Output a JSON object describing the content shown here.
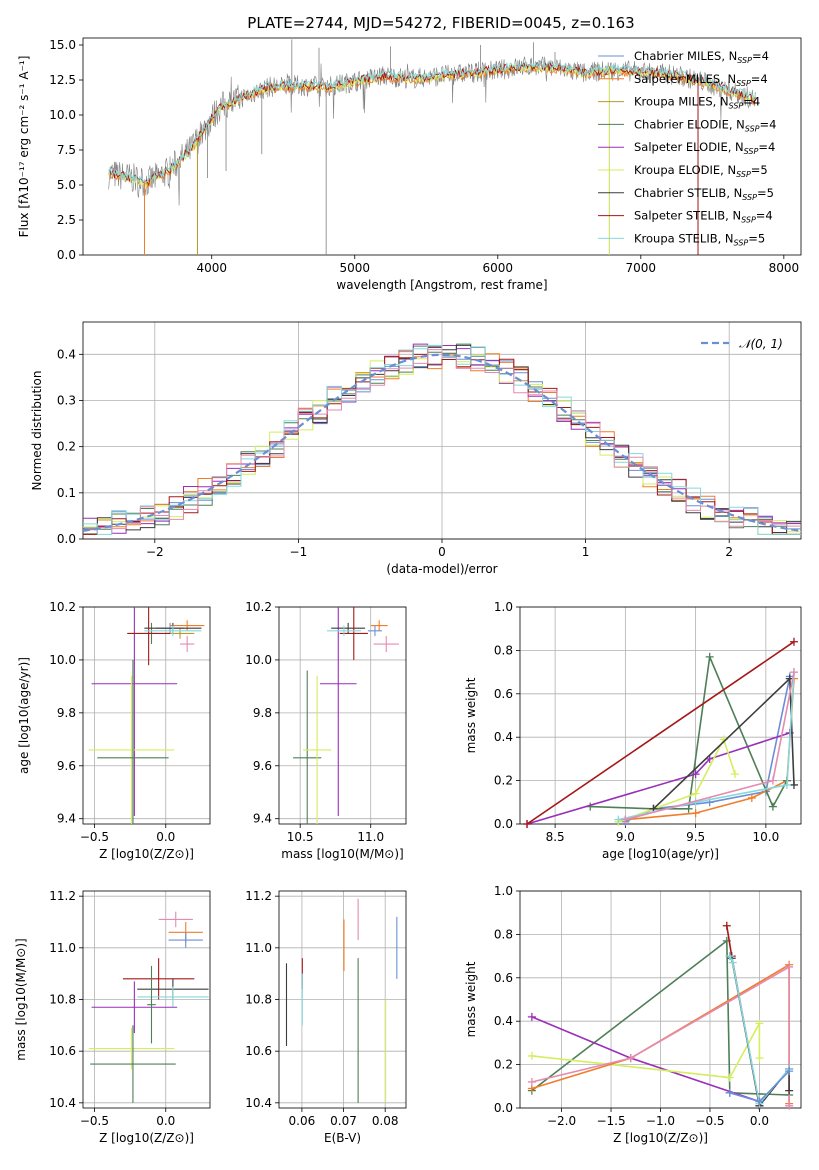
{
  "title": "PLATE=2744, MJD=54272, FIBERID=0045, z=0.163",
  "colors": {
    "chabrier_miles": "#6b8fd6",
    "salpeter_miles": "#f07d2a",
    "kroupa_miles": "#b79a2c",
    "chabrier_elodie": "#4f7f57",
    "salpeter_elodie": "#9a2fb8",
    "kroupa_elodie": "#d4ee5f",
    "chabrier_stelib": "#3d3d3d",
    "salpeter_stelib": "#a51818",
    "kroupa_stelib": "#86d8dc",
    "pink": "#e58ab0",
    "grey": "#808080",
    "normal_curve": "#6b8fd6"
  },
  "chart_data": [
    {
      "type": "line",
      "id": "spectrum",
      "xlabel": "wavelength [Angstrom, rest frame]",
      "ylabel": "Flux [f_λ10^-17 erg cm^-2 s^-1 A^-1]",
      "xlim": [
        3100,
        8120
      ],
      "ylim": [
        0,
        15.5
      ],
      "xticks": [
        4000,
        5000,
        6000,
        7000,
        8000
      ],
      "yticks": [
        0.0,
        2.5,
        5.0,
        7.5,
        10.0,
        12.5,
        15.0
      ],
      "grid": false,
      "legend_position": "right",
      "legend": [
        {
          "label": "Chabrier MILES, N_SSP=4",
          "color_key": "chabrier_miles"
        },
        {
          "label": "Salpeter MILES, N_SSP=4",
          "color_key": "salpeter_miles"
        },
        {
          "label": "Kroupa MILES, N_SSP=4",
          "color_key": "kroupa_miles"
        },
        {
          "label": "Chabrier ELODIE, N_SSP=4",
          "color_key": "chabrier_elodie"
        },
        {
          "label": "Salpeter ELODIE, N_SSP=4",
          "color_key": "salpeter_elodie"
        },
        {
          "label": "Kroupa ELODIE, N_SSP=5",
          "color_key": "kroupa_elodie"
        },
        {
          "label": "Chabrier STELIB, N_SSP=5",
          "color_key": "chabrier_stelib"
        },
        {
          "label": "Salpeter STELIB, N_SSP=4",
          "color_key": "salpeter_stelib"
        },
        {
          "label": "Kroupa STELIB, N_SSP=5",
          "color_key": "kroupa_stelib"
        }
      ],
      "continuum": [
        [
          3280,
          5.8
        ],
        [
          3400,
          5.6
        ],
        [
          3550,
          5.2
        ],
        [
          3700,
          6.0
        ],
        [
          3850,
          7.5
        ],
        [
          3950,
          9.0
        ],
        [
          4050,
          10.5
        ],
        [
          4200,
          11.2
        ],
        [
          4400,
          12.0
        ],
        [
          4600,
          12.1
        ],
        [
          4800,
          12.0
        ],
        [
          5000,
          12.4
        ],
        [
          5200,
          12.8
        ],
        [
          5400,
          12.6
        ],
        [
          5600,
          12.8
        ],
        [
          5800,
          13.0
        ],
        [
          6000,
          13.2
        ],
        [
          6200,
          13.5
        ],
        [
          6400,
          13.4
        ],
        [
          6600,
          13.0
        ],
        [
          6800,
          13.2
        ],
        [
          7000,
          13.1
        ],
        [
          7200,
          12.9
        ],
        [
          7400,
          12.5
        ],
        [
          7600,
          11.8
        ],
        [
          7800,
          11.1
        ]
      ],
      "spikes_down": [
        [
          3530,
          0.0
        ],
        [
          3900,
          0.0
        ],
        [
          4800,
          0.0
        ],
        [
          6780,
          0.0
        ],
        [
          7400,
          0.0
        ],
        [
          4350,
          7.2
        ],
        [
          4100,
          6.0
        ],
        [
          3970,
          5.5
        ]
      ],
      "spikes_up": [
        [
          4560,
          15.4
        ],
        [
          4750,
          14.8
        ],
        [
          5250,
          14.9
        ],
        [
          5880,
          15.0
        ],
        [
          6250,
          15.2
        ],
        [
          6400,
          14.5
        ]
      ]
    },
    {
      "type": "histogram",
      "id": "residuals",
      "xlabel": "(data-model)/error",
      "ylabel": "Normed distribution",
      "xlim": [
        -2.5,
        2.5
      ],
      "ylim": [
        0,
        0.47
      ],
      "xticks": [
        -2,
        -1,
        0,
        1,
        2
      ],
      "yticks": [
        0.0,
        0.1,
        0.2,
        0.3,
        0.4
      ],
      "grid": true,
      "legend_position": "top-right",
      "legend": [
        {
          "label": "𝒩(0, 1)",
          "color_key": "normal_curve"
        }
      ],
      "bin_width": 0.1
    },
    {
      "type": "errorbar",
      "id": "age_vs_Z",
      "xlabel": "Z [log10(Z/Z⊙)]",
      "ylabel": "age [log10(age/yr)]",
      "xlim": [
        -0.58,
        0.31
      ],
      "ylim": [
        9.38,
        10.2
      ],
      "xticks": [
        -0.5,
        0.0
      ],
      "yticks": [
        9.4,
        9.6,
        9.8,
        10.0,
        10.2
      ],
      "grid": true,
      "points": [
        {
          "color_key": "chabrier_miles",
          "x": 0.03,
          "xerr": 0.1,
          "y": 10.12,
          "yerr": 0.02
        },
        {
          "color_key": "salpeter_miles",
          "x": 0.15,
          "xerr": 0.12,
          "y": 10.13,
          "yerr": 0.02
        },
        {
          "color_key": "kroupa_miles",
          "x": 0.1,
          "xerr": 0.1,
          "y": 10.1,
          "yerr": 0.02
        },
        {
          "color_key": "chabrier_elodie",
          "x": -0.1,
          "xerr": 0.05,
          "y": 10.1,
          "yerr": 0.04
        },
        {
          "color_key": "salpeter_elodie",
          "x": -0.22,
          "xerr": 0.3,
          "y": 9.91,
          "yerr": 0.5
        },
        {
          "color_key": "kroupa_elodie",
          "x": -0.24,
          "xerr": 0.3,
          "y": 9.66,
          "yerr": 0.28
        },
        {
          "color_key": "chabrier_stelib",
          "x": 0.05,
          "xerr": 0.2,
          "y": 10.12,
          "yerr": 0.02
        },
        {
          "color_key": "salpeter_stelib",
          "x": -0.12,
          "xerr": 0.15,
          "y": 10.1,
          "yerr": 0.12
        },
        {
          "color_key": "kroupa_stelib",
          "x": 0.05,
          "xerr": 0.2,
          "y": 10.11,
          "yerr": 0.02
        },
        {
          "color_key": "chabrier_elodie",
          "x": -0.23,
          "xerr": 0.25,
          "y": 9.63,
          "yerr": 0.37
        },
        {
          "color_key": "pink",
          "x": 0.15,
          "xerr": 0.05,
          "y": 10.06,
          "yerr": 0.03
        }
      ]
    },
    {
      "type": "errorbar",
      "id": "age_vs_mass",
      "xlabel": "mass [log10(M/M⊙)]",
      "ylabel": "",
      "xlim": [
        10.35,
        11.25
      ],
      "ylim": [
        9.38,
        10.2
      ],
      "xticks": [
        10.5,
        11.0
      ],
      "yticks": [
        9.4,
        9.6,
        9.8,
        10.0,
        10.2
      ],
      "grid": true,
      "points": [
        {
          "color_key": "chabrier_miles",
          "x": 11.03,
          "xerr": 0.05,
          "y": 10.11,
          "yerr": 0.02
        },
        {
          "color_key": "salpeter_miles",
          "x": 11.06,
          "xerr": 0.06,
          "y": 10.13,
          "yerr": 0.02
        },
        {
          "color_key": "pink",
          "x": 11.11,
          "xerr": 0.09,
          "y": 10.06,
          "yerr": 0.03
        },
        {
          "color_key": "chabrier_elodie",
          "x": 10.55,
          "xerr": 0.1,
          "y": 9.63,
          "yerr": 0.33
        },
        {
          "color_key": "salpeter_elodie",
          "x": 10.77,
          "xerr": 0.13,
          "y": 9.91,
          "yerr": 0.5
        },
        {
          "color_key": "kroupa_elodie",
          "x": 10.62,
          "xerr": 0.1,
          "y": 9.66,
          "yerr": 0.28
        },
        {
          "color_key": "chabrier_stelib",
          "x": 10.84,
          "xerr": 0.12,
          "y": 10.12,
          "yerr": 0.02
        },
        {
          "color_key": "salpeter_stelib",
          "x": 10.88,
          "xerr": 0.1,
          "y": 10.1,
          "yerr": 0.1
        },
        {
          "color_key": "kroupa_stelib",
          "x": 10.81,
          "xerr": 0.12,
          "y": 10.11,
          "yerr": 0.02
        }
      ]
    },
    {
      "type": "line",
      "id": "mass_weight_vs_age",
      "xlabel": "age [log10(age/yr)]",
      "ylabel": "mass weight",
      "xlim": [
        8.25,
        10.25
      ],
      "ylim": [
        0,
        1.0
      ],
      "xticks": [
        8.5,
        9.0,
        9.5,
        10.0
      ],
      "yticks": [
        0.0,
        0.2,
        0.4,
        0.6,
        0.8,
        1.0
      ],
      "grid": true,
      "series": [
        {
          "color_key": "chabrier_miles",
          "x": [
            9.0,
            9.2,
            9.6,
            10.0,
            10.17
          ],
          "y": [
            0.01,
            0.07,
            0.1,
            0.15,
            0.68
          ]
        },
        {
          "color_key": "salpeter_miles",
          "x": [
            9.0,
            9.5,
            9.9,
            10.15,
            10.2
          ],
          "y": [
            0.02,
            0.05,
            0.12,
            0.2,
            0.67
          ]
        },
        {
          "color_key": "chabrier_elodie",
          "x": [
            8.75,
            9.2,
            9.45,
            9.6,
            10.05,
            10.15
          ],
          "y": [
            0.08,
            0.07,
            0.07,
            0.77,
            0.08,
            0.2
          ]
        },
        {
          "color_key": "salpeter_elodie",
          "x": [
            8.3,
            9.5,
            9.6,
            10.17
          ],
          "y": [
            0.0,
            0.23,
            0.3,
            0.42
          ]
        },
        {
          "color_key": "kroupa_elodie",
          "x": [
            8.95,
            9.5,
            9.7,
            9.78
          ],
          "y": [
            0.01,
            0.14,
            0.39,
            0.23
          ]
        },
        {
          "color_key": "chabrier_stelib",
          "x": [
            9.2,
            10.17,
            10.2
          ],
          "y": [
            0.07,
            0.67,
            0.18
          ]
        },
        {
          "color_key": "salpeter_stelib",
          "x": [
            8.3,
            10.2
          ],
          "y": [
            0.0,
            0.84
          ]
        },
        {
          "color_key": "kroupa_stelib",
          "x": [
            8.95,
            9.5,
            10.15,
            10.2
          ],
          "y": [
            0.02,
            0.1,
            0.18,
            0.7
          ]
        },
        {
          "color_key": "pink",
          "x": [
            9.0,
            10.05,
            10.2
          ],
          "y": [
            0.02,
            0.2,
            0.7
          ]
        }
      ]
    },
    {
      "type": "errorbar",
      "id": "mass_vs_Z",
      "xlabel": "Z [log10(Z/Z⊙)]",
      "ylabel": "mass [log10(M/M⊙)]",
      "xlim": [
        -0.58,
        0.31
      ],
      "ylim": [
        10.38,
        11.22
      ],
      "xticks": [
        -0.5,
        0.0
      ],
      "yticks": [
        10.4,
        10.6,
        10.8,
        11.0,
        11.2
      ],
      "grid": true,
      "points": [
        {
          "color_key": "pink",
          "x": 0.07,
          "xerr": 0.12,
          "y": 11.11,
          "yerr": 0.03
        },
        {
          "color_key": "salpeter_miles",
          "x": 0.14,
          "xerr": 0.12,
          "y": 11.06,
          "yerr": 0.04
        },
        {
          "color_key": "chabrier_miles",
          "x": 0.14,
          "xerr": 0.12,
          "y": 11.03,
          "yerr": 0.03
        },
        {
          "color_key": "salpeter_stelib",
          "x": -0.05,
          "xerr": 0.25,
          "y": 10.88,
          "yerr": 0.08
        },
        {
          "color_key": "chabrier_stelib",
          "x": 0.05,
          "xerr": 0.25,
          "y": 10.84,
          "yerr": 0.04
        },
        {
          "color_key": "kroupa_stelib",
          "x": 0.05,
          "xerr": 0.25,
          "y": 10.81,
          "yerr": 0.04
        },
        {
          "color_key": "salpeter_elodie",
          "x": -0.22,
          "xerr": 0.3,
          "y": 10.77,
          "yerr": 0.1
        },
        {
          "color_key": "kroupa_elodie",
          "x": -0.24,
          "xerr": 0.3,
          "y": 10.61,
          "yerr": 0.08
        },
        {
          "color_key": "chabrier_elodie",
          "x": -0.23,
          "xerr": 0.3,
          "y": 10.55,
          "yerr": 0.15
        },
        {
          "color_key": "chabrier_elodie",
          "x": -0.1,
          "xerr": 0.03,
          "y": 10.78,
          "yerr": 0.15
        }
      ]
    },
    {
      "type": "errorbar",
      "id": "mass_vs_ebv",
      "xlabel": "E(B-V)",
      "ylabel": "",
      "xlim": [
        0.0545,
        0.085
      ],
      "ylim": [
        10.38,
        11.22
      ],
      "xticks": [
        0.06,
        0.07,
        0.08
      ],
      "yticks": [
        10.4,
        10.6,
        10.8,
        11.0,
        11.2
      ],
      "grid": true,
      "points": [
        {
          "color_key": "chabrier_stelib",
          "x": 0.0563,
          "y": 10.78,
          "yerr": 0.16
        },
        {
          "color_key": "salpeter_stelib",
          "x": 0.0601,
          "y": 10.9,
          "yerr": 0.06
        },
        {
          "color_key": "kroupa_stelib",
          "x": 0.0601,
          "y": 10.8,
          "yerr": 0.1
        },
        {
          "color_key": "salpeter_miles",
          "x": 0.0701,
          "y": 11.01,
          "yerr": 0.1
        },
        {
          "color_key": "pink",
          "x": 0.0735,
          "y": 11.11,
          "yerr": 0.08
        },
        {
          "color_key": "chabrier_elodie",
          "x": 0.0735,
          "y": 10.68,
          "yerr": 0.28
        },
        {
          "color_key": "kroupa_elodie",
          "x": 0.0801,
          "y": 10.6,
          "yerr": 0.2
        },
        {
          "color_key": "chabrier_miles",
          "x": 0.0828,
          "y": 11.0,
          "yerr": 0.12
        }
      ]
    },
    {
      "type": "line",
      "id": "mass_weight_vs_Z",
      "xlabel": "Z [log10(Z/Z⊙)]",
      "ylabel": "mass weight",
      "xlim": [
        -2.42,
        0.42
      ],
      "ylim": [
        0,
        1.0
      ],
      "xticks": [
        -2.0,
        -1.5,
        -1.0,
        -0.5,
        0.0
      ],
      "yticks": [
        0.0,
        0.2,
        0.4,
        0.6,
        0.8,
        1.0
      ],
      "grid": true,
      "series": [
        {
          "color_key": "chabrier_elodie",
          "x": [
            -2.3,
            -0.33,
            -0.3,
            0.3
          ],
          "y": [
            0.08,
            0.77,
            0.07,
            0.06
          ]
        },
        {
          "color_key": "salpeter_elodie",
          "x": [
            -2.3,
            -1.3,
            0.0
          ],
          "y": [
            0.42,
            0.23,
            0.03
          ]
        },
        {
          "color_key": "kroupa_elodie",
          "x": [
            -2.3,
            -0.3,
            0.0,
            0.0
          ],
          "y": [
            0.24,
            0.14,
            0.39,
            0.23
          ]
        },
        {
          "color_key": "salpeter_miles",
          "x": [
            -2.3,
            -1.3,
            0.3,
            0.3
          ],
          "y": [
            0.09,
            0.23,
            0.66,
            0.02
          ]
        },
        {
          "color_key": "pink",
          "x": [
            -2.3,
            -1.3,
            0.3,
            0.3
          ],
          "y": [
            0.12,
            0.23,
            0.65,
            0.01
          ]
        },
        {
          "color_key": "salpeter_stelib",
          "x": [
            -0.33,
            -0.28,
            0.0
          ],
          "y": [
            0.84,
            0.7,
            0.01
          ]
        },
        {
          "color_key": "chabrier_stelib",
          "x": [
            -0.3,
            -0.28,
            0.0,
            0.3,
            0.3
          ],
          "y": [
            0.7,
            0.69,
            0.01,
            0.18,
            0.08
          ]
        },
        {
          "color_key": "kroupa_stelib",
          "x": [
            -0.3,
            -0.27,
            0.0,
            0.3
          ],
          "y": [
            0.7,
            0.67,
            0.02,
            0.18
          ]
        },
        {
          "color_key": "chabrier_miles",
          "x": [
            -0.3,
            0.0,
            0.3
          ],
          "y": [
            0.07,
            0.03,
            0.17
          ]
        }
      ]
    }
  ]
}
